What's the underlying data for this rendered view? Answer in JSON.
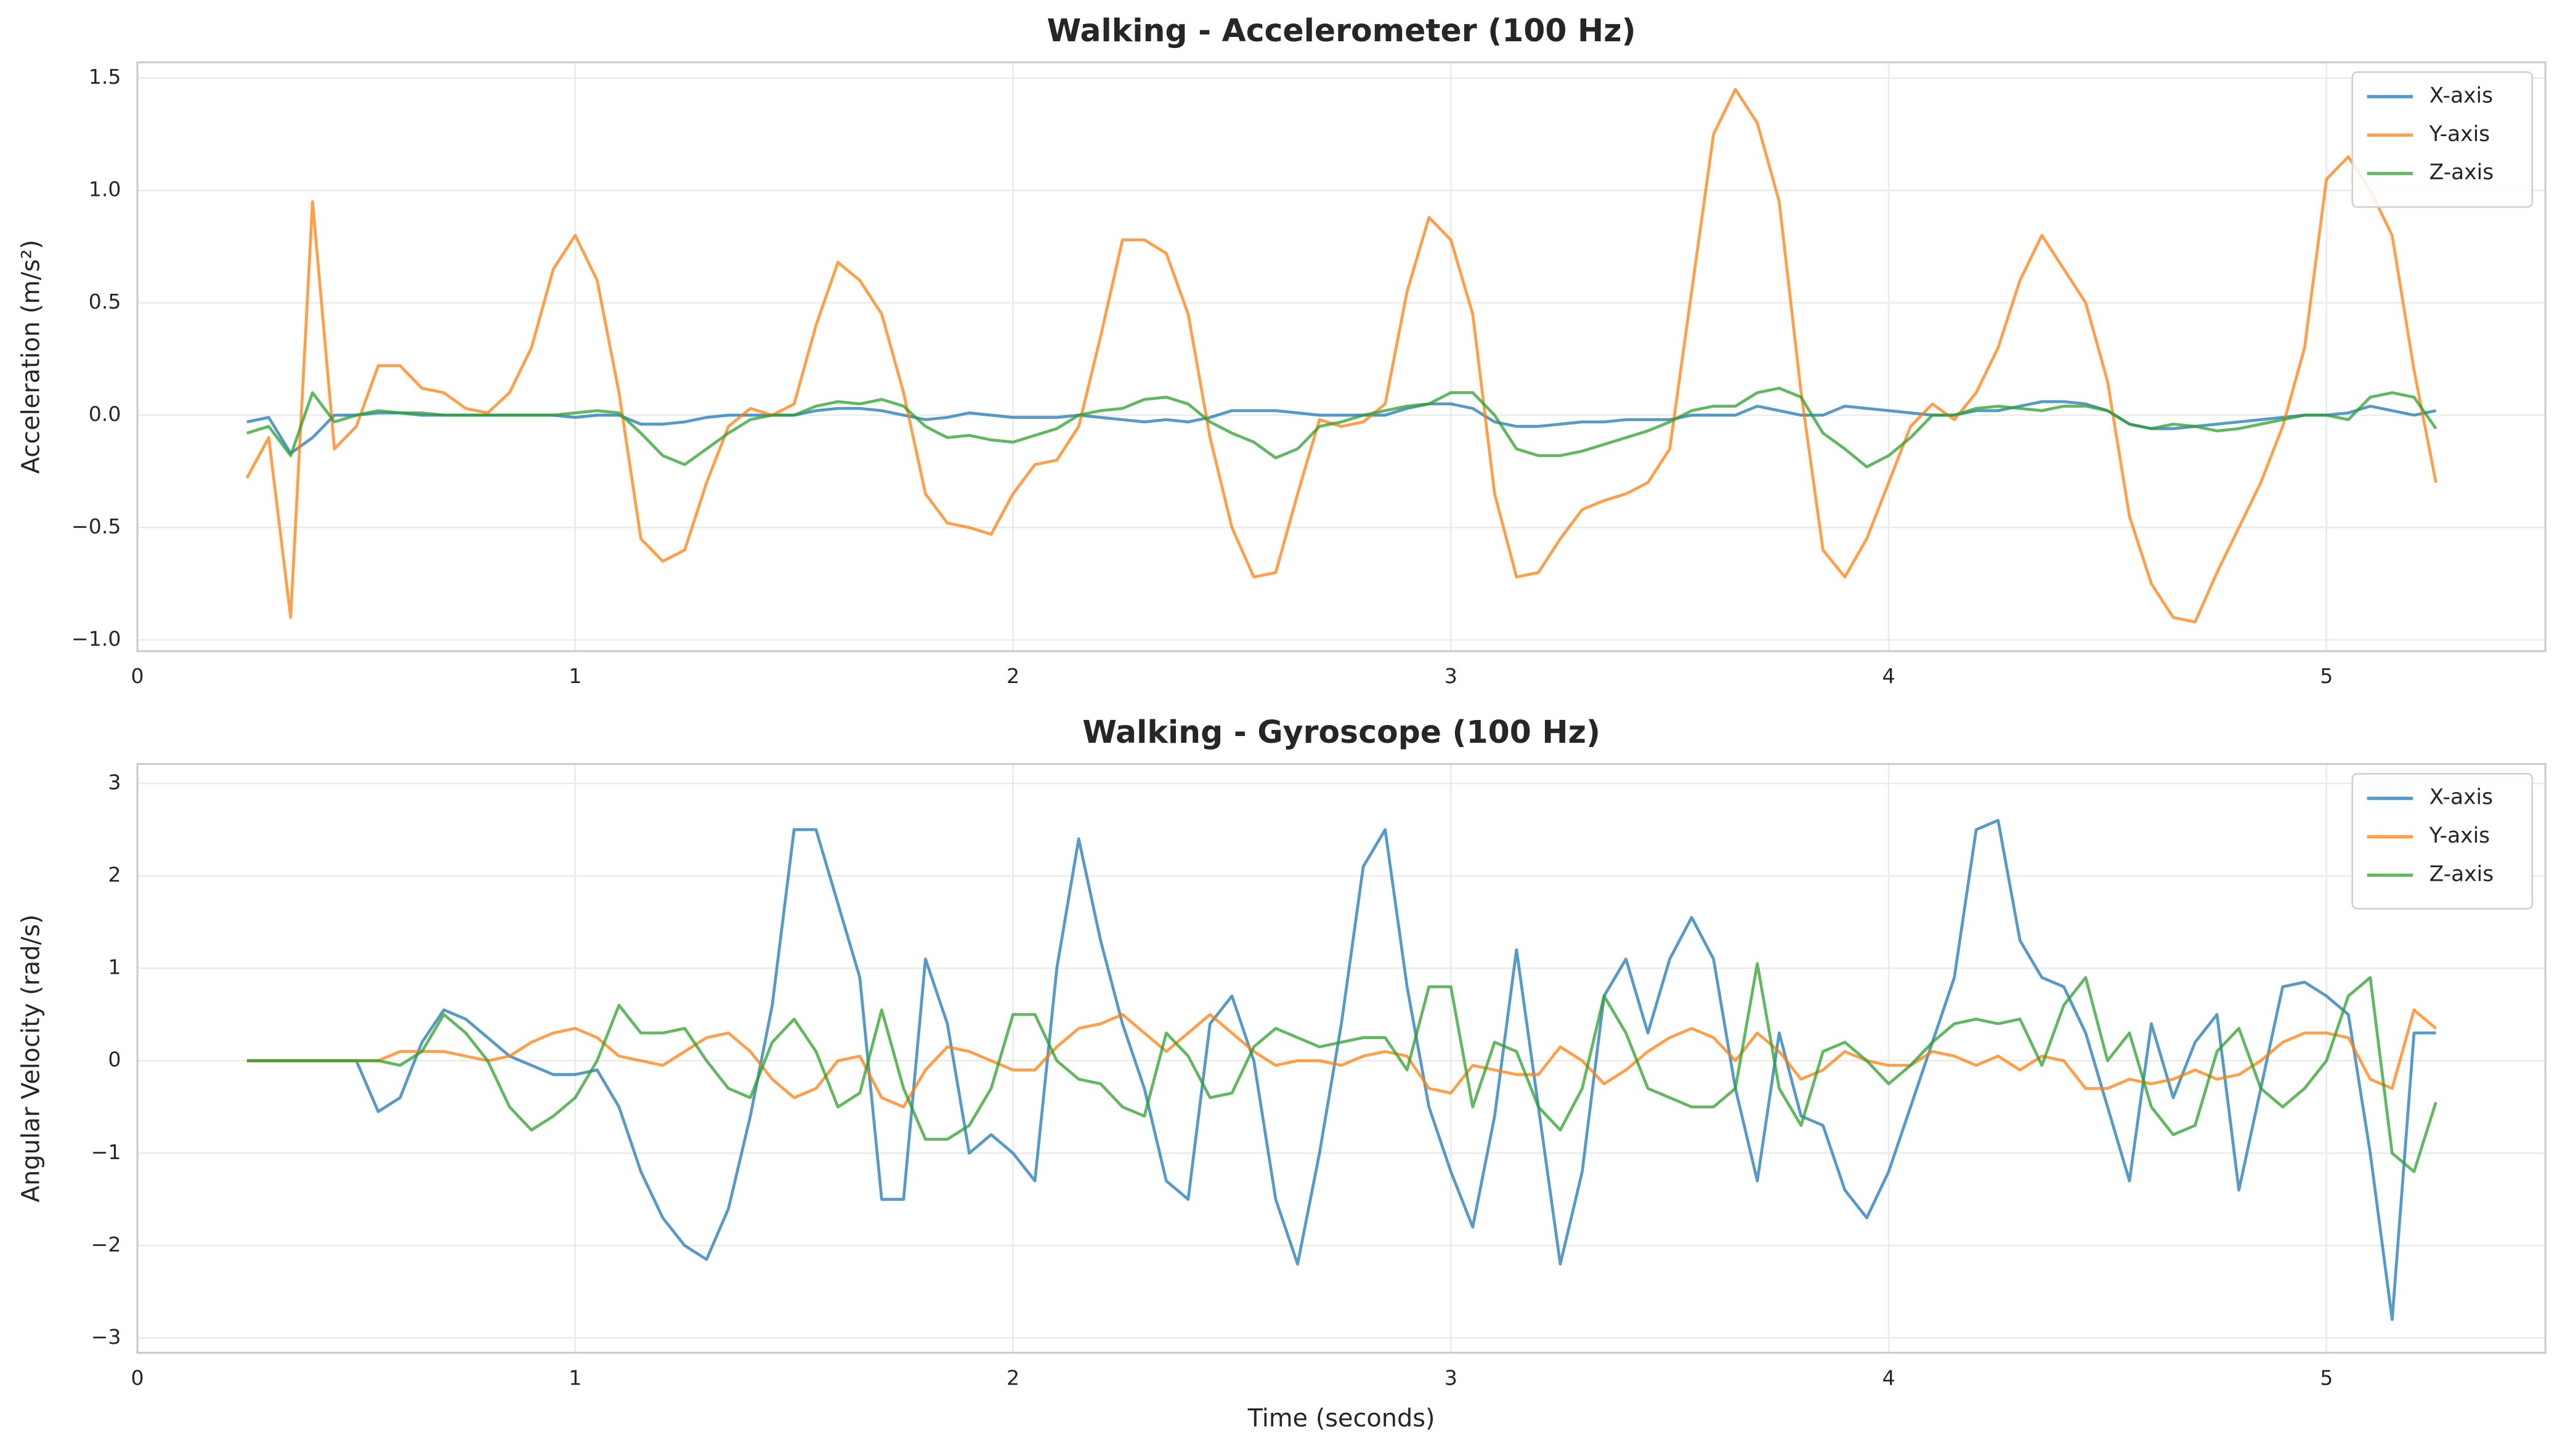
{
  "chart_data": [
    {
      "type": "line",
      "title": "Walking - Accelerometer (100 Hz)",
      "ylabel": "Acceleration (m/s²)",
      "x": [
        0.25,
        0.3,
        0.35,
        0.4,
        0.45,
        0.5,
        0.55,
        0.6,
        0.65,
        0.7,
        0.75,
        0.8,
        0.85,
        0.9,
        0.95,
        1.0,
        1.05,
        1.1,
        1.15,
        1.2,
        1.25,
        1.3,
        1.35,
        1.4,
        1.45,
        1.5,
        1.55,
        1.6,
        1.65,
        1.7,
        1.75,
        1.8,
        1.85,
        1.9,
        1.95,
        2.0,
        2.05,
        2.1,
        2.15,
        2.2,
        2.25,
        2.3,
        2.35,
        2.4,
        2.45,
        2.5,
        2.55,
        2.6,
        2.65,
        2.7,
        2.75,
        2.8,
        2.85,
        2.9,
        2.95,
        3.0,
        3.05,
        3.1,
        3.15,
        3.2,
        3.25,
        3.3,
        3.35,
        3.4,
        3.45,
        3.5,
        3.55,
        3.6,
        3.65,
        3.7,
        3.75,
        3.8,
        3.85,
        3.9,
        3.95,
        4.0,
        4.05,
        4.1,
        4.15,
        4.2,
        4.25,
        4.3,
        4.35,
        4.4,
        4.45,
        4.5,
        4.55,
        4.6,
        4.65,
        4.7,
        4.75,
        4.8,
        4.85,
        4.9,
        4.95,
        5.0,
        5.05,
        5.1,
        5.15,
        5.2,
        5.25
      ],
      "series": [
        {
          "name": "X-axis",
          "color": "#1f77b4",
          "values": [
            -0.03,
            -0.01,
            -0.17,
            -0.1,
            0.0,
            0.0,
            0.01,
            0.01,
            0.0,
            0.0,
            0.0,
            0.0,
            0.0,
            0.0,
            0.0,
            -0.01,
            0.0,
            0.0,
            -0.04,
            -0.04,
            -0.03,
            -0.01,
            0.0,
            0.0,
            0.0,
            0.0,
            0.02,
            0.03,
            0.03,
            0.02,
            0.0,
            -0.02,
            -0.01,
            0.01,
            0.0,
            -0.01,
            -0.01,
            -0.01,
            0.0,
            -0.01,
            -0.02,
            -0.03,
            -0.02,
            -0.03,
            -0.01,
            0.02,
            0.02,
            0.02,
            0.01,
            0.0,
            0.0,
            0.0,
            0.0,
            0.03,
            0.05,
            0.05,
            0.03,
            -0.03,
            -0.05,
            -0.05,
            -0.04,
            -0.03,
            -0.03,
            -0.02,
            -0.02,
            -0.02,
            0.0,
            0.0,
            0.0,
            0.04,
            0.02,
            0.0,
            0.0,
            0.04,
            0.03,
            0.02,
            0.01,
            0.0,
            0.0,
            0.02,
            0.02,
            0.04,
            0.06,
            0.06,
            0.05,
            0.02,
            -0.04,
            -0.06,
            -0.06,
            -0.05,
            -0.04,
            -0.03,
            -0.02,
            -0.01,
            0.0,
            0.0,
            0.01,
            0.04,
            0.02,
            0.0,
            0.02
          ]
        },
        {
          "name": "Y-axis",
          "color": "#ff7f0e",
          "values": [
            -0.28,
            -0.1,
            -0.9,
            0.95,
            -0.15,
            -0.05,
            0.22,
            0.22,
            0.12,
            0.1,
            0.03,
            0.01,
            0.1,
            0.3,
            0.65,
            0.8,
            0.6,
            0.1,
            -0.55,
            -0.65,
            -0.6,
            -0.3,
            -0.05,
            0.03,
            0.0,
            0.05,
            0.4,
            0.68,
            0.6,
            0.45,
            0.1,
            -0.35,
            -0.48,
            -0.5,
            -0.53,
            -0.35,
            -0.22,
            -0.2,
            -0.05,
            0.35,
            0.78,
            0.78,
            0.72,
            0.45,
            -0.1,
            -0.5,
            -0.72,
            -0.7,
            -0.35,
            -0.02,
            -0.05,
            -0.03,
            0.05,
            0.55,
            0.88,
            0.78,
            0.45,
            -0.35,
            -0.72,
            -0.7,
            -0.55,
            -0.42,
            -0.38,
            -0.35,
            -0.3,
            -0.15,
            0.55,
            1.25,
            1.45,
            1.3,
            0.95,
            0.1,
            -0.6,
            -0.72,
            -0.55,
            -0.3,
            -0.05,
            0.05,
            -0.02,
            0.1,
            0.3,
            0.6,
            0.8,
            0.65,
            0.5,
            0.15,
            -0.45,
            -0.75,
            -0.9,
            -0.92,
            -0.7,
            -0.5,
            -0.3,
            -0.05,
            0.3,
            1.05,
            1.15,
            1.0,
            0.8,
            0.2,
            -0.3
          ]
        },
        {
          "name": "Z-axis",
          "color": "#2ca02c",
          "values": [
            -0.08,
            -0.05,
            -0.18,
            0.1,
            -0.03,
            0.0,
            0.02,
            0.01,
            0.01,
            0.0,
            0.0,
            0.0,
            0.0,
            0.0,
            0.0,
            0.01,
            0.02,
            0.01,
            -0.08,
            -0.18,
            -0.22,
            -0.15,
            -0.08,
            -0.02,
            0.0,
            0.0,
            0.04,
            0.06,
            0.05,
            0.07,
            0.04,
            -0.05,
            -0.1,
            -0.09,
            -0.11,
            -0.12,
            -0.09,
            -0.06,
            0.0,
            0.02,
            0.03,
            0.07,
            0.08,
            0.05,
            -0.03,
            -0.08,
            -0.12,
            -0.19,
            -0.15,
            -0.05,
            -0.03,
            0.0,
            0.02,
            0.04,
            0.05,
            0.1,
            0.1,
            0.0,
            -0.15,
            -0.18,
            -0.18,
            -0.16,
            -0.13,
            -0.1,
            -0.07,
            -0.03,
            0.02,
            0.04,
            0.04,
            0.1,
            0.12,
            0.08,
            -0.08,
            -0.15,
            -0.23,
            -0.18,
            -0.1,
            0.0,
            0.0,
            0.03,
            0.04,
            0.03,
            0.02,
            0.04,
            0.04,
            0.02,
            -0.04,
            -0.06,
            -0.04,
            -0.05,
            -0.07,
            -0.06,
            -0.04,
            -0.02,
            0.0,
            0.0,
            -0.02,
            0.08,
            0.1,
            0.08,
            -0.06
          ]
        }
      ],
      "xlim": [
        0,
        5.5
      ],
      "ylim": [
        -1.05,
        1.57
      ],
      "xticks": [
        0,
        1,
        2,
        3,
        4,
        5
      ],
      "yticks": [
        {
          "value": -1,
          "label": "−1.0"
        },
        {
          "value": -0.5,
          "label": "−0.5"
        },
        {
          "value": 0,
          "label": "0.0"
        },
        0.5,
        {
          "value": 1,
          "label": "1.0"
        },
        1.5
      ],
      "grid": true,
      "legend": "upper right"
    },
    {
      "type": "line",
      "title": "Walking - Gyroscope (100 Hz)",
      "ylabel": "Angular Velocity (rad/s)",
      "xlabel": "Time (seconds)",
      "x": [
        0.25,
        0.3,
        0.35,
        0.4,
        0.45,
        0.5,
        0.55,
        0.6,
        0.65,
        0.7,
        0.75,
        0.8,
        0.85,
        0.9,
        0.95,
        1.0,
        1.05,
        1.1,
        1.15,
        1.2,
        1.25,
        1.3,
        1.35,
        1.4,
        1.45,
        1.5,
        1.55,
        1.6,
        1.65,
        1.7,
        1.75,
        1.8,
        1.85,
        1.9,
        1.95,
        2.0,
        2.05,
        2.1,
        2.15,
        2.2,
        2.25,
        2.3,
        2.35,
        2.4,
        2.45,
        2.5,
        2.55,
        2.6,
        2.65,
        2.7,
        2.75,
        2.8,
        2.85,
        2.9,
        2.95,
        3.0,
        3.05,
        3.1,
        3.15,
        3.2,
        3.25,
        3.3,
        3.35,
        3.4,
        3.45,
        3.5,
        3.55,
        3.6,
        3.65,
        3.7,
        3.75,
        3.8,
        3.85,
        3.9,
        3.95,
        4.0,
        4.05,
        4.1,
        4.15,
        4.2,
        4.25,
        4.3,
        4.35,
        4.4,
        4.45,
        4.5,
        4.55,
        4.6,
        4.65,
        4.7,
        4.75,
        4.8,
        4.85,
        4.9,
        4.95,
        5.0,
        5.05,
        5.1,
        5.15,
        5.2,
        5.25
      ],
      "series": [
        {
          "name": "X-axis",
          "color": "#1f77b4",
          "values": [
            0,
            0,
            0,
            0,
            0,
            0,
            -0.55,
            -0.4,
            0.2,
            0.55,
            0.45,
            0.25,
            0.05,
            -0.05,
            -0.15,
            -0.15,
            -0.1,
            -0.5,
            -1.2,
            -1.7,
            -2.0,
            -2.15,
            -1.6,
            -0.6,
            0.6,
            2.5,
            2.5,
            1.7,
            0.9,
            -1.5,
            -1.5,
            1.1,
            0.4,
            -1.0,
            -0.8,
            -1.0,
            -1.3,
            1.0,
            2.4,
            1.3,
            0.4,
            -0.3,
            -1.3,
            -1.5,
            0.4,
            0.7,
            0.0,
            -1.5,
            -2.2,
            -1.0,
            0.4,
            2.1,
            2.5,
            0.8,
            -0.5,
            -1.2,
            -1.8,
            -0.6,
            1.2,
            -0.5,
            -2.2,
            -1.2,
            0.7,
            1.1,
            0.3,
            1.1,
            1.55,
            1.1,
            -0.3,
            -1.3,
            0.3,
            -0.6,
            -0.7,
            -1.4,
            -1.7,
            -1.2,
            -0.5,
            0.2,
            0.9,
            2.5,
            2.6,
            1.3,
            0.9,
            0.8,
            0.3,
            -0.5,
            -1.3,
            0.4,
            -0.4,
            0.2,
            0.5,
            -1.4,
            -0.3,
            0.8,
            0.85,
            0.7,
            0.5,
            -1.0,
            -2.8,
            0.3,
            0.3
          ]
        },
        {
          "name": "Y-axis",
          "color": "#ff7f0e",
          "values": [
            0,
            0,
            0,
            0,
            0,
            0,
            0,
            0.1,
            0.1,
            0.1,
            0.05,
            0.0,
            0.05,
            0.2,
            0.3,
            0.35,
            0.25,
            0.05,
            0.0,
            -0.05,
            0.1,
            0.25,
            0.3,
            0.1,
            -0.2,
            -0.4,
            -0.3,
            0.0,
            0.05,
            -0.4,
            -0.5,
            -0.1,
            0.15,
            0.1,
            0.0,
            -0.1,
            -0.1,
            0.15,
            0.35,
            0.4,
            0.5,
            0.3,
            0.1,
            0.3,
            0.5,
            0.3,
            0.1,
            -0.05,
            0.0,
            0.0,
            -0.05,
            0.05,
            0.1,
            0.05,
            -0.3,
            -0.35,
            -0.05,
            -0.1,
            -0.15,
            -0.15,
            0.15,
            0.0,
            -0.25,
            -0.1,
            0.1,
            0.25,
            0.35,
            0.25,
            0.0,
            0.3,
            0.1,
            -0.2,
            -0.1,
            0.1,
            0.0,
            -0.05,
            -0.05,
            0.1,
            0.05,
            -0.05,
            0.05,
            -0.1,
            0.05,
            0.0,
            -0.3,
            -0.3,
            -0.2,
            -0.25,
            -0.2,
            -0.1,
            -0.2,
            -0.15,
            0.0,
            0.2,
            0.3,
            0.3,
            0.25,
            -0.2,
            -0.3,
            0.55,
            0.35
          ]
        },
        {
          "name": "Z-axis",
          "color": "#2ca02c",
          "values": [
            0,
            0,
            0,
            0,
            0,
            0,
            0.0,
            -0.05,
            0.1,
            0.5,
            0.3,
            0.0,
            -0.5,
            -0.75,
            -0.6,
            -0.4,
            0.0,
            0.6,
            0.3,
            0.3,
            0.35,
            0.0,
            -0.3,
            -0.4,
            0.2,
            0.45,
            0.1,
            -0.5,
            -0.35,
            0.55,
            -0.3,
            -0.85,
            -0.85,
            -0.7,
            -0.3,
            0.5,
            0.5,
            0.0,
            -0.2,
            -0.25,
            -0.5,
            -0.6,
            0.3,
            0.05,
            -0.4,
            -0.35,
            0.15,
            0.35,
            0.25,
            0.15,
            0.2,
            0.25,
            0.25,
            -0.1,
            0.8,
            0.8,
            -0.5,
            0.2,
            0.1,
            -0.5,
            -0.75,
            -0.3,
            0.7,
            0.3,
            -0.3,
            -0.4,
            -0.5,
            -0.5,
            -0.3,
            1.05,
            -0.3,
            -0.7,
            0.1,
            0.2,
            0.0,
            -0.25,
            -0.05,
            0.2,
            0.4,
            0.45,
            0.4,
            0.45,
            -0.05,
            0.6,
            0.9,
            0.0,
            0.3,
            -0.5,
            -0.8,
            -0.7,
            0.1,
            0.35,
            -0.3,
            -0.5,
            -0.3,
            0.0,
            0.7,
            0.9,
            -1.0,
            -1.2,
            -0.45
          ]
        }
      ],
      "xlim": [
        0,
        5.5
      ],
      "ylim": [
        -3.16,
        3.21
      ],
      "xticks": [
        0,
        1,
        2,
        3,
        4,
        5
      ],
      "yticks": [
        {
          "value": -3,
          "label": "−3"
        },
        {
          "value": -2,
          "label": "−2"
        },
        {
          "value": -1,
          "label": "−1"
        },
        0,
        1,
        2,
        3
      ],
      "grid": true,
      "legend": "upper right"
    }
  ]
}
